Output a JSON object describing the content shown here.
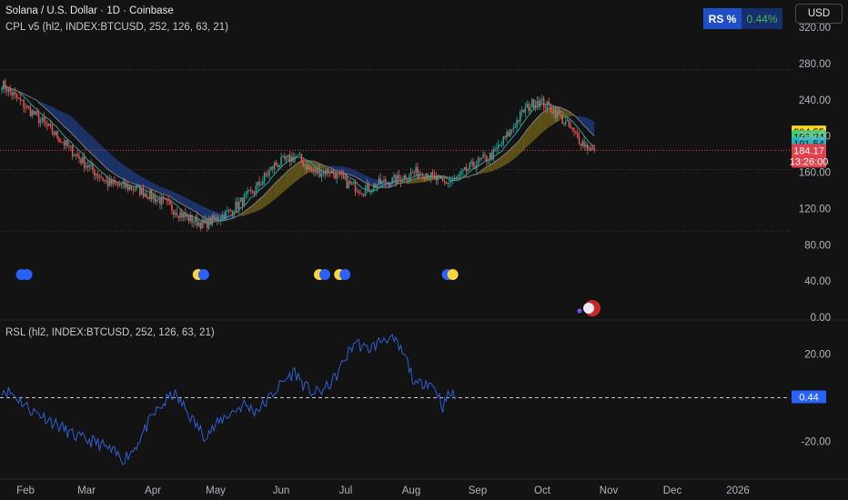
{
  "header": {
    "title": "Solana / U.S. Dollar · 1D · Coinbase",
    "indicator": "CPL v5 (hl2, INDEX:BTCUSD, 252, 126, 63, 21)",
    "sub_indicator": "RSL (hl2, INDEX:BTCUSD, 252, 126, 63, 21)",
    "currency": "USD"
  },
  "rs_widget": {
    "label": "RS %",
    "value": "0.44%"
  },
  "colors": {
    "background": "#131313",
    "candle_up": "#26a69a",
    "candle_down": "#ef5350",
    "band_blue": "#1f3a7a",
    "band_olive": "#6b5d1a",
    "rsl_line": "#2f5fd6",
    "price_label": "#e0414c",
    "marker_blue": "#2962ff",
    "marker_yellow": "#ffd43b"
  },
  "chart_data": [
    {
      "type": "candlestick",
      "x_ticks": [
        "Feb",
        "Mar",
        "Apr",
        "May",
        "Jun",
        "Jul",
        "Aug",
        "Sep",
        "Oct",
        "Nov",
        "Dec",
        "2026"
      ],
      "y_ticks": [
        "0.00",
        "40.00",
        "80.00",
        "120.00",
        "160.00",
        "200.00",
        "240.00",
        "280.00",
        "320.00"
      ],
      "ylim": [
        0,
        340
      ],
      "price_path": [
        [
          0,
          258
        ],
        [
          12,
          236
        ],
        [
          30,
          205
        ],
        [
          48,
          172
        ],
        [
          63,
          148
        ],
        [
          80,
          142
        ],
        [
          95,
          128
        ],
        [
          108,
          112
        ],
        [
          120,
          102
        ],
        [
          135,
          116
        ],
        [
          150,
          140
        ],
        [
          162,
          168
        ],
        [
          175,
          178
        ],
        [
          185,
          160
        ],
        [
          195,
          162
        ],
        [
          205,
          148
        ],
        [
          215,
          140
        ],
        [
          225,
          148
        ],
        [
          235,
          152
        ],
        [
          245,
          160
        ],
        [
          252,
          158
        ],
        [
          262,
          148
        ],
        [
          270,
          152
        ],
        [
          280,
          168
        ],
        [
          292,
          180
        ],
        [
          302,
          205
        ],
        [
          310,
          228
        ],
        [
          318,
          240
        ],
        [
          328,
          228
        ],
        [
          336,
          212
        ],
        [
          342,
          198
        ],
        [
          348,
          188
        ],
        [
          352,
          184
        ]
      ],
      "reference_lines": [
        273,
        163,
        95
      ],
      "price_labels": [
        {
          "text": "204.55",
          "value": 204.55,
          "color": "#f5d327",
          "text_color": "#131313"
        },
        {
          "text": "199.24",
          "value": 199.24,
          "color": "#3cd070",
          "text_color": "#131313"
        },
        {
          "text": "191.54",
          "value": 191.54,
          "color": "#22b5c8",
          "text_color": "#131313"
        },
        {
          "text": "184.17",
          "value": 184.17,
          "color": "#e0414c",
          "text_color": "#ffffff",
          "countdown": "13:26:00"
        }
      ],
      "event_markers": [
        {
          "day": 3,
          "colors": [
            "blue",
            "blue"
          ]
        },
        {
          "day": 108,
          "colors": [
            "yellow",
            "blue"
          ]
        },
        {
          "day": 180,
          "colors": [
            "yellow",
            "blue"
          ]
        },
        {
          "day": 192,
          "colors": [
            "yellow",
            "blue"
          ]
        },
        {
          "day": 256,
          "colors": [
            "blue",
            "yellow"
          ]
        }
      ]
    },
    {
      "type": "line",
      "name": "RSL",
      "y_ticks": [
        "20.00",
        "-20.00"
      ],
      "ylim": [
        -31,
        32
      ],
      "last_value": "0.44",
      "path": [
        [
          0,
          4
        ],
        [
          6,
          2
        ],
        [
          12,
          -2
        ],
        [
          18,
          -6
        ],
        [
          24,
          -8
        ],
        [
          30,
          -11
        ],
        [
          36,
          -14
        ],
        [
          42,
          -17
        ],
        [
          48,
          -19
        ],
        [
          54,
          -20
        ],
        [
          60,
          -22
        ],
        [
          66,
          -25
        ],
        [
          72,
          -28
        ],
        [
          78,
          -24
        ],
        [
          84,
          -16
        ],
        [
          90,
          -8
        ],
        [
          96,
          -3
        ],
        [
          102,
          2
        ],
        [
          108,
          -4
        ],
        [
          114,
          -11
        ],
        [
          120,
          -17
        ],
        [
          126,
          -14
        ],
        [
          132,
          -9
        ],
        [
          138,
          -6
        ],
        [
          144,
          -3
        ],
        [
          150,
          -6
        ],
        [
          156,
          -3
        ],
        [
          162,
          3
        ],
        [
          168,
          8
        ],
        [
          174,
          12
        ],
        [
          180,
          5
        ],
        [
          186,
          2
        ],
        [
          192,
          4
        ],
        [
          198,
          9
        ],
        [
          204,
          18
        ],
        [
          210,
          26
        ],
        [
          216,
          22
        ],
        [
          222,
          24
        ],
        [
          228,
          28
        ],
        [
          234,
          25
        ],
        [
          240,
          18
        ],
        [
          246,
          5
        ],
        [
          252,
          8
        ],
        [
          258,
          4
        ],
        [
          262,
          -4
        ],
        [
          266,
          2
        ],
        [
          270,
          0.44
        ]
      ]
    }
  ]
}
